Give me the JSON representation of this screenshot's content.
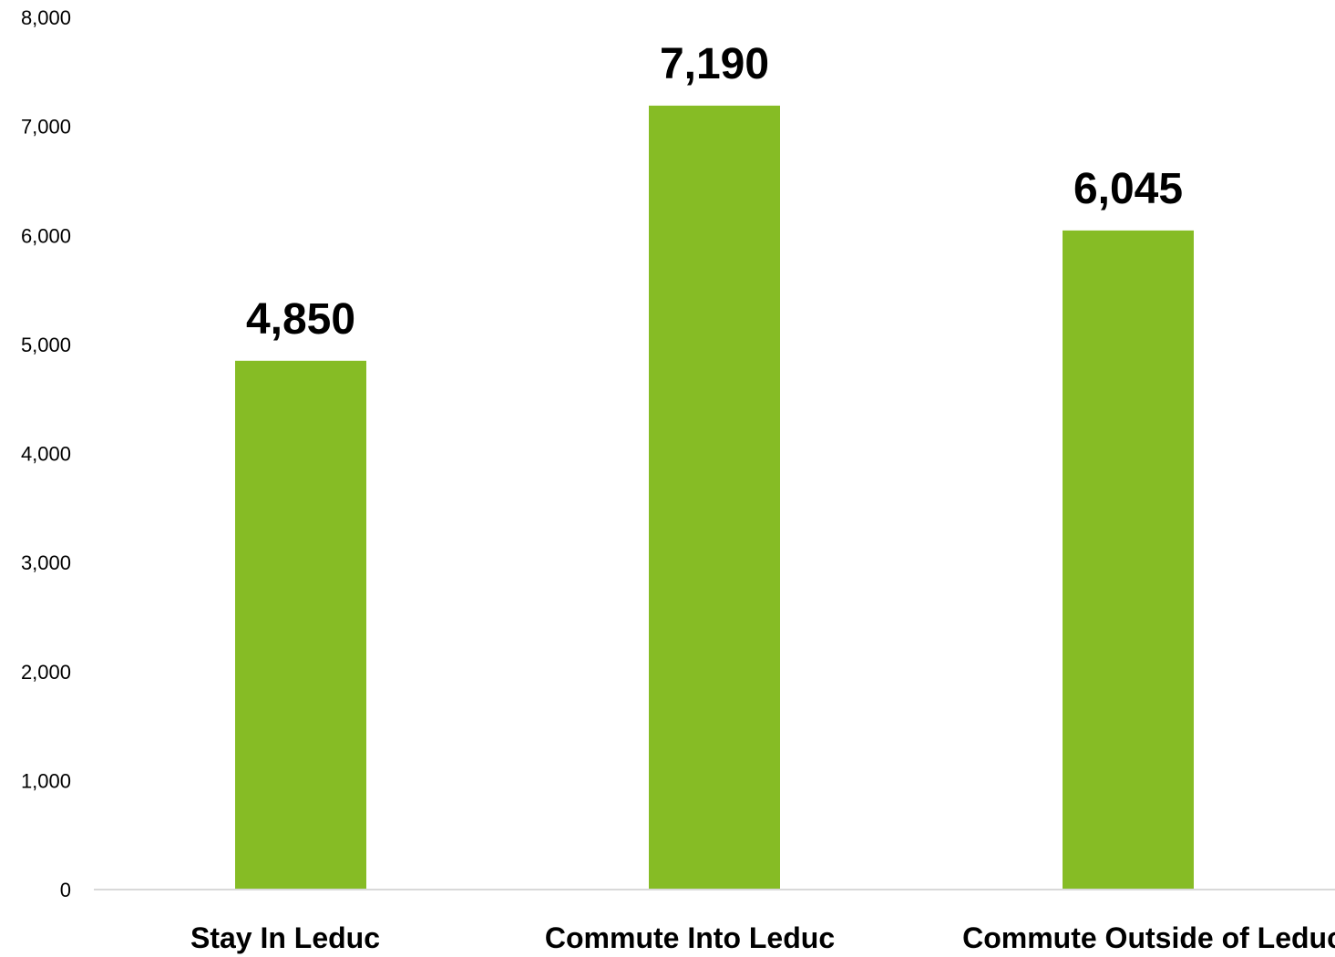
{
  "chart_data": {
    "type": "bar",
    "categories": [
      "Stay In Leduc",
      "Commute Into Leduc",
      "Commute Outside of Leduc"
    ],
    "values": [
      4850,
      7190,
      6045
    ],
    "value_labels": [
      "4,850",
      "7,190",
      "6,045"
    ],
    "y_ticks": [
      "0",
      "1,000",
      "2,000",
      "3,000",
      "4,000",
      "5,000",
      "6,000",
      "7,000",
      "8,000"
    ],
    "ylim": [
      0,
      8000
    ],
    "grid": false,
    "legend": "none",
    "bar_color": "#86bc25"
  }
}
